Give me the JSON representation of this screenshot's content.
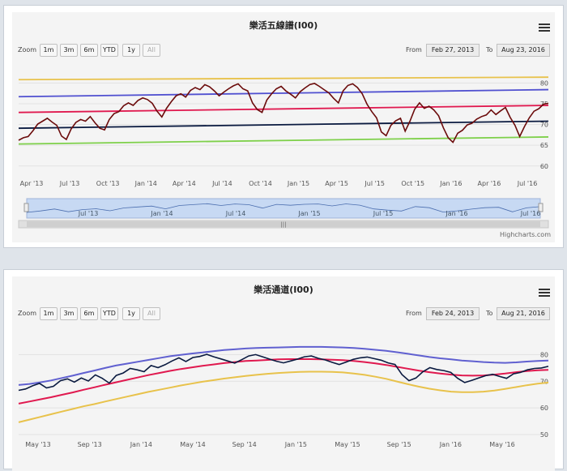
{
  "zoom_label": "Zoom",
  "from_label": "From",
  "to_label": "To",
  "range_buttons": [
    "1m",
    "3m",
    "6m",
    "YTD",
    "1y",
    "All"
  ],
  "credit": "Highcharts.com",
  "chart_data": [
    {
      "type": "line",
      "title": "樂活五線譜(I00)",
      "from": "Feb 27, 2013",
      "to": "Aug 23, 2016",
      "x_ticks": [
        "Apr '13",
        "Jul '13",
        "Oct '13",
        "Jan '14",
        "Apr '14",
        "Jul '14",
        "Oct '14",
        "Jan '15",
        "Apr '15",
        "Jul '15",
        "Oct '15",
        "Jan '16",
        "Apr '16",
        "Jul '16"
      ],
      "y_ticks": [
        60,
        65,
        70,
        75,
        80
      ],
      "ylim": [
        58,
        83
      ],
      "navigator_ticks": [
        "Jul '13",
        "Jan '14",
        "Jul '14",
        "Jan '15",
        "Jul '15",
        "Jan '16",
        "Jul '16"
      ],
      "colors": {
        "price": "#6b0b0b",
        "band_top": "#e8c24b",
        "band_upper": "#5050d0",
        "band_mid": "#e0194f",
        "band_lower": "#0a1a40",
        "band_bottom": "#7ed04a"
      },
      "bands": [
        {
          "start": 80.8,
          "end": 81.4
        },
        {
          "start": 76.7,
          "end": 78.4
        },
        {
          "start": 72.9,
          "end": 74.6
        },
        {
          "start": 69.1,
          "end": 70.8
        },
        {
          "start": 65.3,
          "end": 67.0
        }
      ],
      "price": [
        66.2,
        66.8,
        67.1,
        68.5,
        70.1,
        70.8,
        71.5,
        70.6,
        69.8,
        67.2,
        66.4,
        68.9,
        70.5,
        71.2,
        70.8,
        71.9,
        70.4,
        69.1,
        68.7,
        71.2,
        72.6,
        73.1,
        74.5,
        75.2,
        74.6,
        75.8,
        76.4,
        76.0,
        75.1,
        73.2,
        71.8,
        73.9,
        75.5,
        76.9,
        77.4,
        76.6,
        78.2,
        78.9,
        78.4,
        79.6,
        79.1,
        78.1,
        76.9,
        77.8,
        78.6,
        79.3,
        79.8,
        78.6,
        78.1,
        75.2,
        73.6,
        72.9,
        75.9,
        77.4,
        78.6,
        79.2,
        78.1,
        77.3,
        76.4,
        77.9,
        78.8,
        79.6,
        79.9,
        79.2,
        78.4,
        77.6,
        76.3,
        75.2,
        78.1,
        79.4,
        79.8,
        78.9,
        77.4,
        74.9,
        73.1,
        71.6,
        68.2,
        67.3,
        69.8,
        70.9,
        71.5,
        68.4,
        70.8,
        73.7,
        75.2,
        73.9,
        74.4,
        73.5,
        72.1,
        69.2,
        66.8,
        65.7,
        67.9,
        68.6,
        69.9,
        70.3,
        71.3,
        71.9,
        72.3,
        73.5,
        72.4,
        73.3,
        74.1,
        71.7,
        69.8,
        67.1,
        69.5,
        71.6,
        73.2,
        73.8,
        74.9,
        75.1
      ]
    },
    {
      "type": "line",
      "title": "樂活通道(I00)",
      "from": "Feb 24, 2013",
      "to": "Aug 21, 2016",
      "x_ticks": [
        "May '13",
        "Sep '13",
        "Jan '14",
        "May '14",
        "Sep '14",
        "Jan '15",
        "May '15",
        "Sep '15",
        "Jan '16",
        "May '16"
      ],
      "y_ticks": [
        50,
        60,
        70,
        80
      ],
      "ylim": [
        50,
        85
      ],
      "colors": {
        "price": "#0a1a40",
        "upper": "#6060d0",
        "middle": "#e0194f",
        "lower": "#e8c24b"
      },
      "price": [
        66.6,
        67.1,
        68.3,
        69.2,
        67.5,
        68.1,
        70.2,
        70.9,
        69.7,
        71.2,
        70.1,
        72.4,
        71.1,
        69.3,
        72.2,
        73.1,
        74.8,
        74.3,
        73.6,
        75.9,
        75.1,
        76.2,
        77.6,
        78.8,
        77.4,
        78.9,
        79.3,
        80.1,
        79.2,
        78.4,
        77.6,
        76.8,
        78.1,
        79.5,
        80.0,
        79.2,
        78.3,
        77.5,
        76.9,
        77.6,
        78.3,
        79.2,
        79.5,
        78.6,
        78.0,
        77.1,
        76.3,
        77.2,
        78.2,
        78.8,
        79.1,
        78.5,
        77.9,
        76.9,
        76.3,
        72.5,
        70.2,
        71.2,
        73.6,
        75.1,
        74.4,
        74.0,
        73.3,
        71.1,
        69.5,
        70.3,
        71.2,
        72.1,
        72.6,
        71.8,
        71.1,
        72.8,
        73.3,
        74.3,
        74.8,
        75.0,
        75.6
      ],
      "upper": [
        68.6,
        69.0,
        69.6,
        70.3,
        71.2,
        72.1,
        73.1,
        74.0,
        75.0,
        75.9,
        76.6,
        77.3,
        78.0,
        78.7,
        79.4,
        79.9,
        80.4,
        80.8,
        81.3,
        81.7,
        82.0,
        82.3,
        82.5,
        82.6,
        82.7,
        82.8,
        82.9,
        82.9,
        82.9,
        82.8,
        82.7,
        82.5,
        82.2,
        81.8,
        81.4,
        80.9,
        80.3,
        79.7,
        79.1,
        78.6,
        78.2,
        77.8,
        77.5,
        77.2,
        77.0,
        76.9,
        77.1,
        77.4,
        77.6,
        77.8
      ],
      "middle": [
        61.6,
        62.4,
        63.2,
        64.0,
        64.9,
        65.8,
        66.8,
        67.7,
        68.7,
        69.6,
        70.5,
        71.4,
        72.3,
        73.1,
        73.9,
        74.6,
        75.2,
        75.8,
        76.3,
        76.8,
        77.2,
        77.6,
        77.8,
        78.0,
        78.2,
        78.3,
        78.3,
        78.3,
        78.2,
        78.1,
        77.9,
        77.6,
        77.2,
        76.7,
        76.1,
        75.4,
        74.7,
        74.0,
        73.4,
        72.9,
        72.5,
        72.2,
        72.1,
        72.2,
        72.5,
        72.9,
        73.4,
        73.8,
        74.1,
        74.3
      ],
      "lower": [
        54.6,
        55.6,
        56.6,
        57.6,
        58.6,
        59.6,
        60.6,
        61.4,
        62.4,
        63.3,
        64.2,
        65.1,
        66.0,
        66.8,
        67.6,
        68.4,
        69.1,
        69.8,
        70.4,
        71.0,
        71.5,
        72.0,
        72.4,
        72.8,
        73.1,
        73.3,
        73.5,
        73.6,
        73.6,
        73.5,
        73.3,
        72.9,
        72.4,
        71.7,
        70.9,
        69.9,
        68.9,
        68.0,
        67.2,
        66.6,
        66.1,
        65.9,
        65.9,
        66.1,
        66.5,
        67.1,
        67.8,
        68.5,
        69.1,
        69.5
      ]
    }
  ]
}
